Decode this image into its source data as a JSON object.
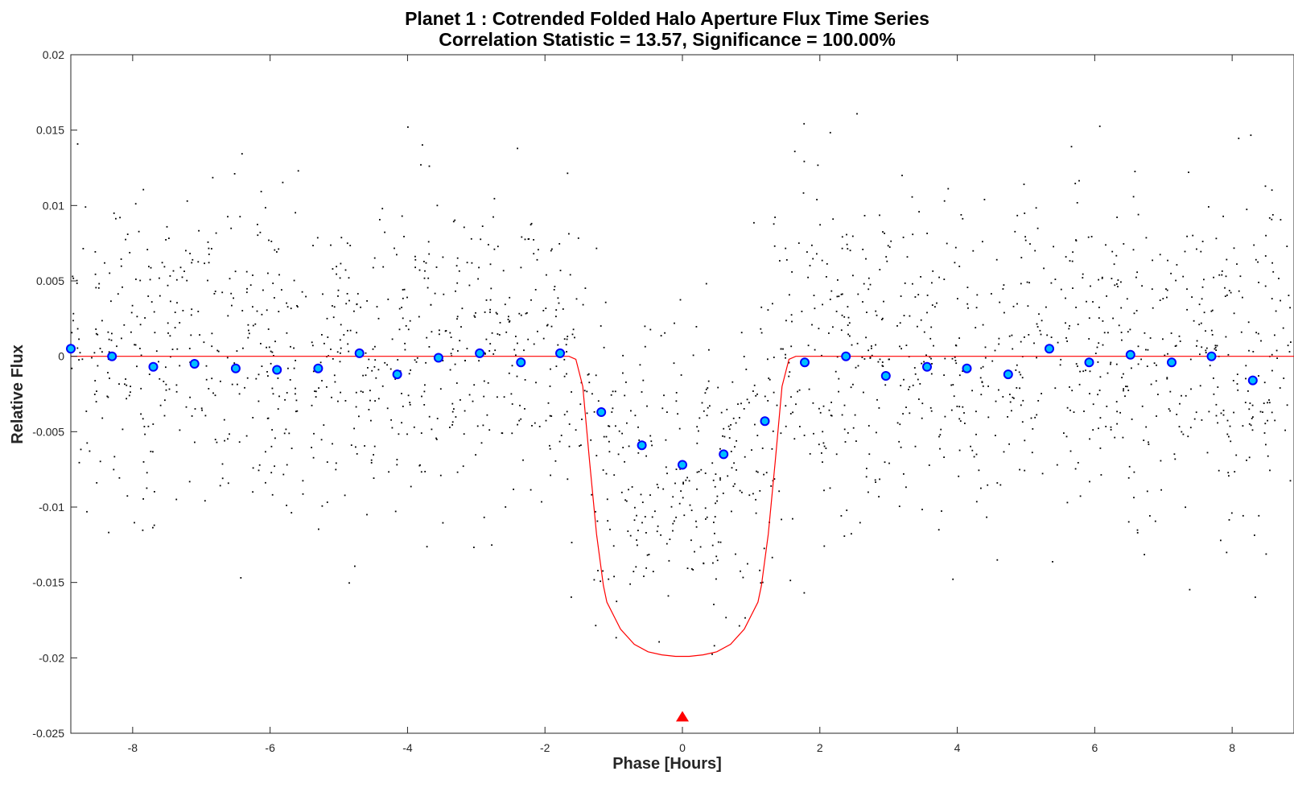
{
  "chart_data": {
    "type": "scatter",
    "title": "Planet 1 : Cotrended Folded Halo Aperture Flux Time Series",
    "subtitle": "Correlation Statistic = 13.57, Significance = 100.00%",
    "xlabel": "Phase [Hours]",
    "ylabel": "Relative Flux",
    "xlim": [
      -8.9,
      8.9
    ],
    "ylim": [
      -0.025,
      0.02
    ],
    "xticks": [
      "-8",
      "-6",
      "-4",
      "-2",
      "0",
      "2",
      "4",
      "6",
      "8"
    ],
    "yticks": [
      "0.02",
      "0.015",
      "0.01",
      "0.005",
      "0",
      "-0.005",
      "-0.01",
      "-0.015",
      "-0.02",
      "-0.025"
    ],
    "grid": false,
    "colors": {
      "raw_points": "#000000",
      "binned_fill": "#00bfff",
      "binned_edge": "#0000ff",
      "model": "#ff0000",
      "marker": "#ff0000"
    },
    "series": [
      {
        "kind": "binned-points",
        "x": [
          -8.9,
          -8.3,
          -7.7,
          -7.1,
          -6.5,
          -5.9,
          -5.3,
          -4.7,
          -4.15,
          -3.55,
          -2.95,
          -2.35,
          -1.78,
          -1.18,
          -0.59,
          0.0,
          0.6,
          1.2,
          1.78,
          2.38,
          2.96,
          3.56,
          4.14,
          4.74,
          5.34,
          5.92,
          6.52,
          7.12,
          7.7,
          8.3
        ],
        "y": [
          0.0005,
          0.0,
          -0.0007,
          -0.0005,
          -0.0008,
          -0.0009,
          -0.0008,
          0.0002,
          -0.0012,
          -0.0001,
          0.0002,
          -0.0004,
          0.0002,
          -0.0037,
          -0.0059,
          -0.0072,
          -0.0065,
          -0.0043,
          -0.0004,
          0.0,
          -0.0013,
          -0.0007,
          -0.0008,
          -0.0012,
          0.0005,
          -0.0004,
          0.0001,
          -0.0004,
          0.0,
          -0.0016
        ]
      },
      {
        "kind": "transit-model",
        "x": [
          -8.9,
          -1.65,
          -1.55,
          -1.45,
          -1.35,
          -1.25,
          -1.15,
          -1.1,
          -0.9,
          -0.7,
          -0.5,
          -0.3,
          -0.1,
          0.0,
          0.1,
          0.3,
          0.5,
          0.7,
          0.9,
          1.1,
          1.15,
          1.25,
          1.35,
          1.45,
          1.55,
          1.65,
          8.9
        ],
        "y": [
          0.0,
          0.0,
          -0.0002,
          -0.002,
          -0.007,
          -0.0118,
          -0.0152,
          -0.0163,
          -0.0181,
          -0.0191,
          -0.0196,
          -0.0198,
          -0.0199,
          -0.0199,
          -0.0199,
          -0.0198,
          -0.0196,
          -0.0191,
          -0.0181,
          -0.0163,
          -0.0152,
          -0.0118,
          -0.007,
          -0.002,
          -0.0002,
          0.0,
          0.0
        ]
      }
    ],
    "raw_scatter": {
      "count": 1900,
      "noise_sigma": 0.0055,
      "seed": 13
    },
    "epoch_marker": {
      "x": 0.0,
      "y": -0.0239
    }
  }
}
